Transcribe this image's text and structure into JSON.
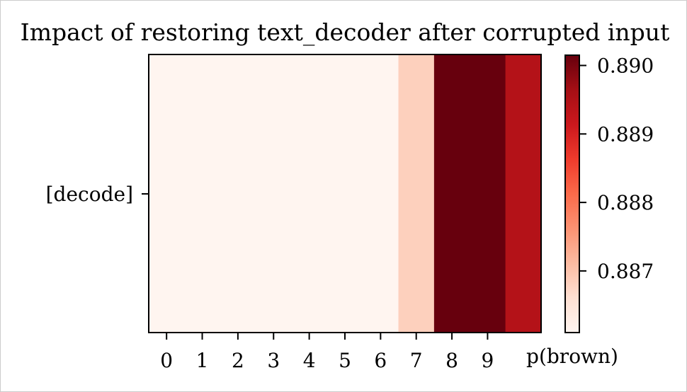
{
  "chart_data": {
    "type": "heatmap",
    "title": "Impact of restoring text_decoder after corrupted input",
    "rows": [
      "[decode]"
    ],
    "x_tick_labels": [
      "0",
      "1",
      "2",
      "3",
      "4",
      "5",
      "6",
      "7",
      "8",
      "9"
    ],
    "columns": 11,
    "values": [
      [
        0.88609,
        0.88609,
        0.88609,
        0.8861,
        0.8861,
        0.8861,
        0.8861,
        0.88682,
        0.89015,
        0.89018,
        0.88945
      ]
    ],
    "colorbar": {
      "label": "p(brown)",
      "label_position": "bottom",
      "range": [
        0.8861,
        0.89015
      ],
      "ticks": [
        0.887,
        0.888,
        0.889,
        0.89
      ],
      "tick_labels": [
        "0.887",
        "0.888",
        "0.889",
        "0.890"
      ],
      "colormap": "Reds"
    }
  }
}
